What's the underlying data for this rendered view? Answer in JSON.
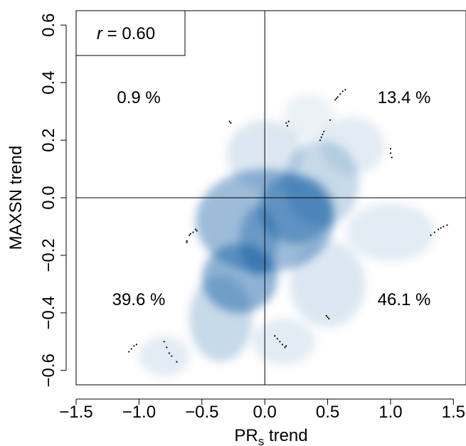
{
  "chart_data": {
    "type": "scatter",
    "title": "",
    "xlabel": "PR",
    "xlabel_subscript": "s",
    "xlabel_suffix": " trend",
    "ylabel": "MAXSN trend",
    "xlim": [
      -1.5,
      1.6
    ],
    "ylim": [
      -0.65,
      0.65
    ],
    "x_ticks": [
      -1.5,
      -1.0,
      -0.5,
      0.0,
      0.5,
      1.0,
      1.5
    ],
    "x_tick_labels": [
      "−1.5",
      "−1.0",
      "−0.5",
      "0.0",
      "0.5",
      "1.0",
      "1.5"
    ],
    "y_ticks": [
      -0.6,
      -0.4,
      -0.2,
      0.0,
      0.2,
      0.4,
      0.6
    ],
    "y_tick_labels": [
      "−0.6",
      "−0.4",
      "−0.2",
      "0.0",
      "0.2",
      "0.4",
      "0.6"
    ],
    "correlation": {
      "symbol": "r",
      "text": " = 0.60"
    },
    "quadrants": {
      "top_left": "0.9 %",
      "top_right": "13.4 %",
      "bottom_left": "39.6 %",
      "bottom_right": "46.1 %"
    },
    "reference_lines": {
      "x": 0.0,
      "y": 0.0
    },
    "density_color": "#08519c",
    "density_blobs": [
      {
        "x": 0.0,
        "y": -0.08,
        "sx": 0.55,
        "sy": 0.18,
        "w": 0.7
      },
      {
        "x": -0.2,
        "y": -0.28,
        "sx": 0.3,
        "sy": 0.12,
        "w": 0.8
      },
      {
        "x": -0.05,
        "y": -0.15,
        "sx": 0.15,
        "sy": 0.12,
        "w": 0.6
      },
      {
        "x": 0.25,
        "y": -0.04,
        "sx": 0.3,
        "sy": 0.12,
        "w": 0.7
      },
      {
        "x": 0.45,
        "y": 0.05,
        "sx": 0.3,
        "sy": 0.15,
        "w": 0.4
      },
      {
        "x": -0.35,
        "y": -0.42,
        "sx": 0.25,
        "sy": 0.15,
        "w": 0.4
      },
      {
        "x": 0.0,
        "y": 0.15,
        "sx": 0.3,
        "sy": 0.12,
        "w": 0.25
      },
      {
        "x": 0.7,
        "y": 0.18,
        "sx": 0.25,
        "sy": 0.1,
        "w": 0.2
      },
      {
        "x": 1.0,
        "y": -0.12,
        "sx": 0.35,
        "sy": 0.1,
        "w": 0.2
      },
      {
        "x": 0.5,
        "y": -0.3,
        "sx": 0.3,
        "sy": 0.15,
        "w": 0.25
      },
      {
        "x": -0.8,
        "y": -0.55,
        "sx": 0.2,
        "sy": 0.07,
        "w": 0.2
      },
      {
        "x": 0.15,
        "y": -0.5,
        "sx": 0.25,
        "sy": 0.08,
        "w": 0.2
      },
      {
        "x": 0.35,
        "y": 0.28,
        "sx": 0.2,
        "sy": 0.08,
        "w": 0.15
      }
    ],
    "points": [
      {
        "x": 0.56,
        "y": 0.34
      },
      {
        "x": 0.58,
        "y": 0.35
      },
      {
        "x": 0.6,
        "y": 0.36
      },
      {
        "x": 0.62,
        "y": 0.37
      },
      {
        "x": 0.64,
        "y": 0.375
      },
      {
        "x": 0.57,
        "y": 0.345
      },
      {
        "x": 0.44,
        "y": 0.2
      },
      {
        "x": 0.45,
        "y": 0.21
      },
      {
        "x": 0.46,
        "y": 0.22
      },
      {
        "x": 0.47,
        "y": 0.23
      },
      {
        "x": 0.52,
        "y": 0.27
      },
      {
        "x": -0.28,
        "y": 0.265
      },
      {
        "x": -0.27,
        "y": 0.26
      },
      {
        "x": 0.17,
        "y": 0.26
      },
      {
        "x": 0.18,
        "y": 0.25
      },
      {
        "x": 0.19,
        "y": 0.265
      },
      {
        "x": 1.0,
        "y": 0.17
      },
      {
        "x": 1.0,
        "y": 0.155
      },
      {
        "x": 1.01,
        "y": 0.14
      },
      {
        "x": -0.55,
        "y": -0.11
      },
      {
        "x": -0.57,
        "y": -0.12
      },
      {
        "x": -0.59,
        "y": -0.125
      },
      {
        "x": -0.54,
        "y": -0.115
      },
      {
        "x": -0.6,
        "y": -0.13
      },
      {
        "x": -0.62,
        "y": -0.15
      },
      {
        "x": -0.62,
        "y": -0.155
      },
      {
        "x": 1.32,
        "y": -0.13
      },
      {
        "x": 1.35,
        "y": -0.12
      },
      {
        "x": 1.38,
        "y": -0.11
      },
      {
        "x": 1.4,
        "y": -0.105
      },
      {
        "x": 1.42,
        "y": -0.1
      },
      {
        "x": 1.45,
        "y": -0.095
      },
      {
        "x": 0.49,
        "y": -0.41
      },
      {
        "x": 0.5,
        "y": -0.415
      },
      {
        "x": 0.51,
        "y": -0.42
      },
      {
        "x": 0.08,
        "y": -0.48
      },
      {
        "x": 0.1,
        "y": -0.49
      },
      {
        "x": 0.12,
        "y": -0.5
      },
      {
        "x": 0.14,
        "y": -0.51
      },
      {
        "x": 0.16,
        "y": -0.52
      },
      {
        "x": 0.17,
        "y": -0.515
      },
      {
        "x": -1.08,
        "y": -0.535
      },
      {
        "x": -1.06,
        "y": -0.525
      },
      {
        "x": -1.04,
        "y": -0.515
      },
      {
        "x": -1.02,
        "y": -0.51
      },
      {
        "x": -0.8,
        "y": -0.5
      },
      {
        "x": -0.78,
        "y": -0.52
      },
      {
        "x": -0.76,
        "y": -0.54
      },
      {
        "x": -0.74,
        "y": -0.55
      },
      {
        "x": -0.7,
        "y": -0.57
      }
    ]
  }
}
